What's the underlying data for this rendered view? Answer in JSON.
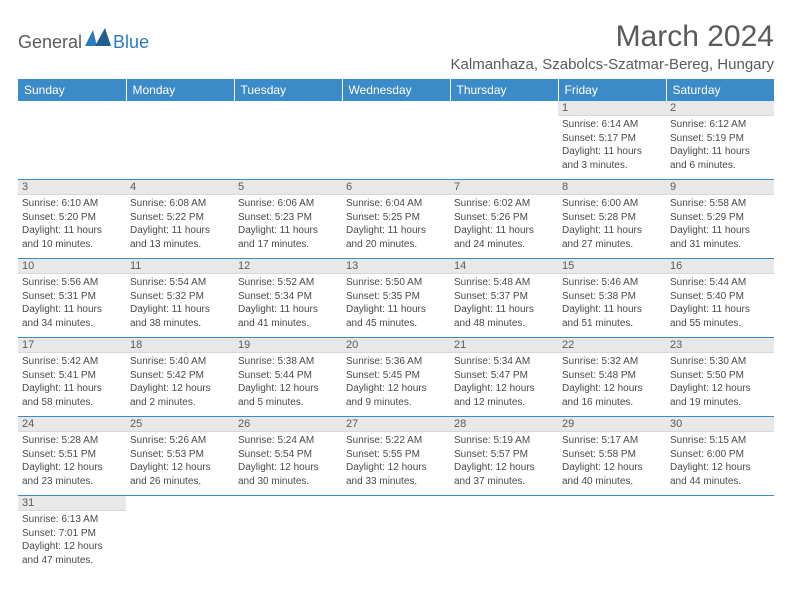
{
  "logo": {
    "part1": "General",
    "part2": "Blue"
  },
  "title": "March 2024",
  "location": "Kalmanhaza, Szabolcs-Szatmar-Bereg, Hungary",
  "colors": {
    "header_bg": "#3b8bc8",
    "header_fg": "#ffffff",
    "daynum_bg": "#e8e8e8",
    "border": "#3b8bc8",
    "text": "#4a4a4a",
    "title_text": "#5a5a5a",
    "logo_blue": "#2b7bbf"
  },
  "weekdays": [
    "Sunday",
    "Monday",
    "Tuesday",
    "Wednesday",
    "Thursday",
    "Friday",
    "Saturday"
  ],
  "weeks": [
    [
      null,
      null,
      null,
      null,
      null,
      {
        "n": "1",
        "sr": "Sunrise: 6:14 AM",
        "ss": "Sunset: 5:17 PM",
        "d1": "Daylight: 11 hours",
        "d2": "and 3 minutes."
      },
      {
        "n": "2",
        "sr": "Sunrise: 6:12 AM",
        "ss": "Sunset: 5:19 PM",
        "d1": "Daylight: 11 hours",
        "d2": "and 6 minutes."
      }
    ],
    [
      {
        "n": "3",
        "sr": "Sunrise: 6:10 AM",
        "ss": "Sunset: 5:20 PM",
        "d1": "Daylight: 11 hours",
        "d2": "and 10 minutes."
      },
      {
        "n": "4",
        "sr": "Sunrise: 6:08 AM",
        "ss": "Sunset: 5:22 PM",
        "d1": "Daylight: 11 hours",
        "d2": "and 13 minutes."
      },
      {
        "n": "5",
        "sr": "Sunrise: 6:06 AM",
        "ss": "Sunset: 5:23 PM",
        "d1": "Daylight: 11 hours",
        "d2": "and 17 minutes."
      },
      {
        "n": "6",
        "sr": "Sunrise: 6:04 AM",
        "ss": "Sunset: 5:25 PM",
        "d1": "Daylight: 11 hours",
        "d2": "and 20 minutes."
      },
      {
        "n": "7",
        "sr": "Sunrise: 6:02 AM",
        "ss": "Sunset: 5:26 PM",
        "d1": "Daylight: 11 hours",
        "d2": "and 24 minutes."
      },
      {
        "n": "8",
        "sr": "Sunrise: 6:00 AM",
        "ss": "Sunset: 5:28 PM",
        "d1": "Daylight: 11 hours",
        "d2": "and 27 minutes."
      },
      {
        "n": "9",
        "sr": "Sunrise: 5:58 AM",
        "ss": "Sunset: 5:29 PM",
        "d1": "Daylight: 11 hours",
        "d2": "and 31 minutes."
      }
    ],
    [
      {
        "n": "10",
        "sr": "Sunrise: 5:56 AM",
        "ss": "Sunset: 5:31 PM",
        "d1": "Daylight: 11 hours",
        "d2": "and 34 minutes."
      },
      {
        "n": "11",
        "sr": "Sunrise: 5:54 AM",
        "ss": "Sunset: 5:32 PM",
        "d1": "Daylight: 11 hours",
        "d2": "and 38 minutes."
      },
      {
        "n": "12",
        "sr": "Sunrise: 5:52 AM",
        "ss": "Sunset: 5:34 PM",
        "d1": "Daylight: 11 hours",
        "d2": "and 41 minutes."
      },
      {
        "n": "13",
        "sr": "Sunrise: 5:50 AM",
        "ss": "Sunset: 5:35 PM",
        "d1": "Daylight: 11 hours",
        "d2": "and 45 minutes."
      },
      {
        "n": "14",
        "sr": "Sunrise: 5:48 AM",
        "ss": "Sunset: 5:37 PM",
        "d1": "Daylight: 11 hours",
        "d2": "and 48 minutes."
      },
      {
        "n": "15",
        "sr": "Sunrise: 5:46 AM",
        "ss": "Sunset: 5:38 PM",
        "d1": "Daylight: 11 hours",
        "d2": "and 51 minutes."
      },
      {
        "n": "16",
        "sr": "Sunrise: 5:44 AM",
        "ss": "Sunset: 5:40 PM",
        "d1": "Daylight: 11 hours",
        "d2": "and 55 minutes."
      }
    ],
    [
      {
        "n": "17",
        "sr": "Sunrise: 5:42 AM",
        "ss": "Sunset: 5:41 PM",
        "d1": "Daylight: 11 hours",
        "d2": "and 58 minutes."
      },
      {
        "n": "18",
        "sr": "Sunrise: 5:40 AM",
        "ss": "Sunset: 5:42 PM",
        "d1": "Daylight: 12 hours",
        "d2": "and 2 minutes."
      },
      {
        "n": "19",
        "sr": "Sunrise: 5:38 AM",
        "ss": "Sunset: 5:44 PM",
        "d1": "Daylight: 12 hours",
        "d2": "and 5 minutes."
      },
      {
        "n": "20",
        "sr": "Sunrise: 5:36 AM",
        "ss": "Sunset: 5:45 PM",
        "d1": "Daylight: 12 hours",
        "d2": "and 9 minutes."
      },
      {
        "n": "21",
        "sr": "Sunrise: 5:34 AM",
        "ss": "Sunset: 5:47 PM",
        "d1": "Daylight: 12 hours",
        "d2": "and 12 minutes."
      },
      {
        "n": "22",
        "sr": "Sunrise: 5:32 AM",
        "ss": "Sunset: 5:48 PM",
        "d1": "Daylight: 12 hours",
        "d2": "and 16 minutes."
      },
      {
        "n": "23",
        "sr": "Sunrise: 5:30 AM",
        "ss": "Sunset: 5:50 PM",
        "d1": "Daylight: 12 hours",
        "d2": "and 19 minutes."
      }
    ],
    [
      {
        "n": "24",
        "sr": "Sunrise: 5:28 AM",
        "ss": "Sunset: 5:51 PM",
        "d1": "Daylight: 12 hours",
        "d2": "and 23 minutes."
      },
      {
        "n": "25",
        "sr": "Sunrise: 5:26 AM",
        "ss": "Sunset: 5:53 PM",
        "d1": "Daylight: 12 hours",
        "d2": "and 26 minutes."
      },
      {
        "n": "26",
        "sr": "Sunrise: 5:24 AM",
        "ss": "Sunset: 5:54 PM",
        "d1": "Daylight: 12 hours",
        "d2": "and 30 minutes."
      },
      {
        "n": "27",
        "sr": "Sunrise: 5:22 AM",
        "ss": "Sunset: 5:55 PM",
        "d1": "Daylight: 12 hours",
        "d2": "and 33 minutes."
      },
      {
        "n": "28",
        "sr": "Sunrise: 5:19 AM",
        "ss": "Sunset: 5:57 PM",
        "d1": "Daylight: 12 hours",
        "d2": "and 37 minutes."
      },
      {
        "n": "29",
        "sr": "Sunrise: 5:17 AM",
        "ss": "Sunset: 5:58 PM",
        "d1": "Daylight: 12 hours",
        "d2": "and 40 minutes."
      },
      {
        "n": "30",
        "sr": "Sunrise: 5:15 AM",
        "ss": "Sunset: 6:00 PM",
        "d1": "Daylight: 12 hours",
        "d2": "and 44 minutes."
      }
    ],
    [
      {
        "n": "31",
        "sr": "Sunrise: 6:13 AM",
        "ss": "Sunset: 7:01 PM",
        "d1": "Daylight: 12 hours",
        "d2": "and 47 minutes."
      },
      null,
      null,
      null,
      null,
      null,
      null
    ]
  ]
}
